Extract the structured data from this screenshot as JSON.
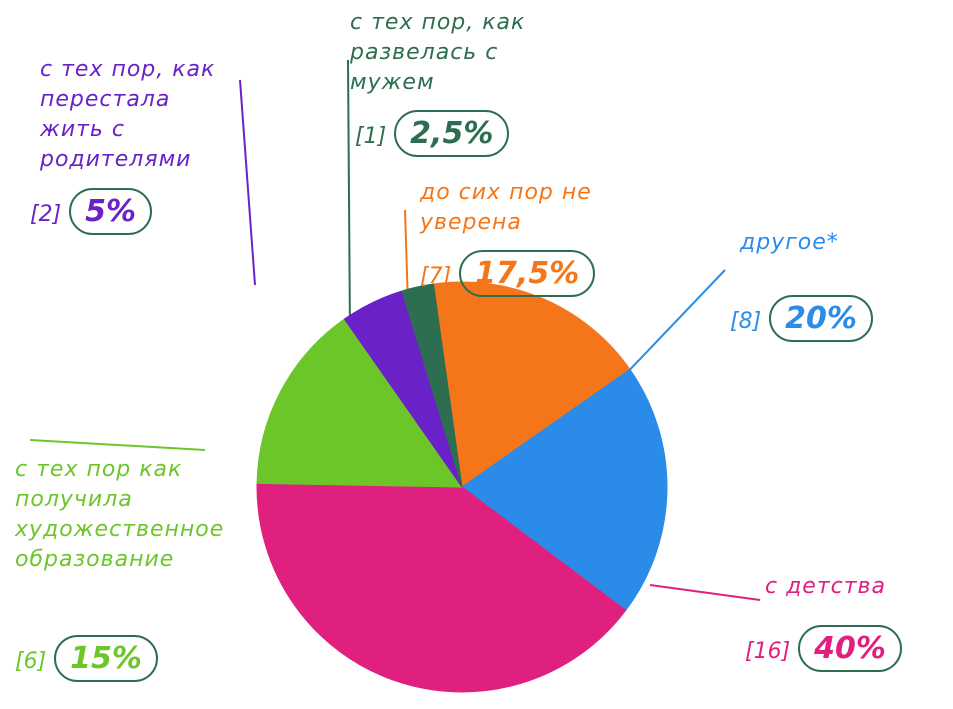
{
  "chart_data": {
    "type": "pie",
    "categories": [
      "до сих пор не уверена",
      "другое*",
      "с детства",
      "с тех пор как получила художественное образование",
      "с тех пор, как перестала жить с родителями",
      "с тех пор, как развелась с мужем"
    ],
    "values": [
      17.5,
      20,
      40,
      15,
      5,
      2.5
    ],
    "value_labels": [
      "17,5%",
      "20%",
      "40%",
      "15%",
      "5%",
      "2,5%"
    ],
    "count_labels": [
      "[7]",
      "[8]",
      "[16]",
      "[6]",
      "[2]",
      "[1]"
    ],
    "colors": [
      "#f5761a",
      "#2a8be8",
      "#e0207f",
      "#6cc62a",
      "#6a22c8",
      "#2e6e50"
    ]
  }
}
